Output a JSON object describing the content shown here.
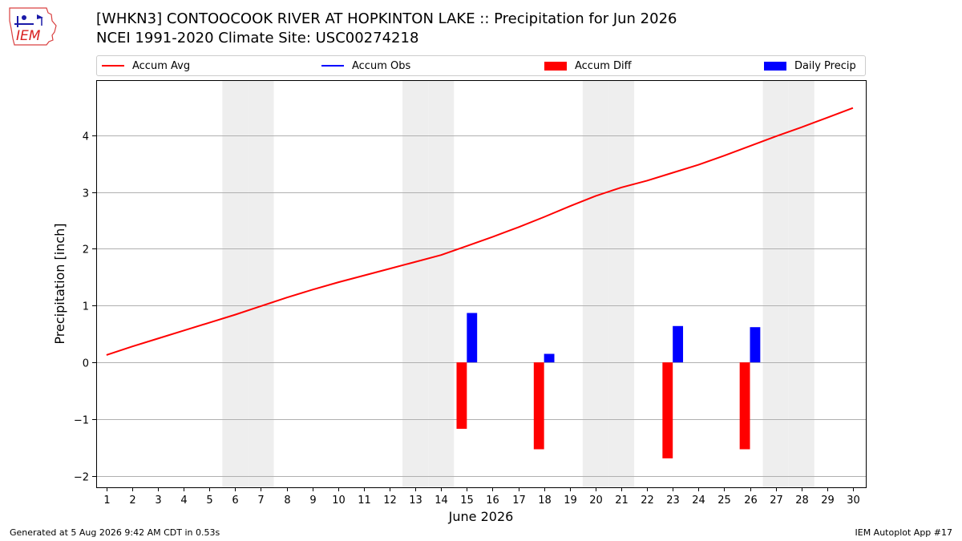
{
  "header": {
    "title_line1": "[WHKN3] CONTOOCOOK RIVER AT HOPKINTON LAKE :: Precipitation for Jun 2026",
    "title_line2": "NCEI 1991-2020 Climate Site: USC00274218",
    "logo_text": "IEM"
  },
  "footer": {
    "generated": "Generated at 5 Aug 2026 9:42 AM CDT in 0.53s",
    "app": "IEM Autoplot App #17"
  },
  "legend": [
    {
      "label": "Accum Avg",
      "kind": "line",
      "color": "#ff0000"
    },
    {
      "label": "Accum Obs",
      "kind": "line",
      "color": "#0000ff"
    },
    {
      "label": "Accum Diff",
      "kind": "patch",
      "color": "#ff0000"
    },
    {
      "label": "Daily Precip",
      "kind": "patch",
      "color": "#0000ff"
    }
  ],
  "chart_data": {
    "type": "bar",
    "xlabel": "June 2026",
    "ylabel": "Precipitation [inch]",
    "xlim": [
      0.6,
      30.5
    ],
    "ylim": [
      -2.2,
      4.97
    ],
    "yticks": [
      -2,
      -1,
      0,
      1,
      2,
      3,
      4
    ],
    "days": [
      1,
      2,
      3,
      4,
      5,
      6,
      7,
      8,
      9,
      10,
      11,
      12,
      13,
      14,
      15,
      16,
      17,
      18,
      19,
      20,
      21,
      22,
      23,
      24,
      25,
      26,
      27,
      28,
      29,
      30
    ],
    "weekend_days": [
      6,
      7,
      13,
      14,
      20,
      21,
      27,
      28
    ],
    "grid": "y",
    "legend_position": "top",
    "series": [
      {
        "name": "Accum Avg",
        "type": "line",
        "color": "#ff0000",
        "values": [
          0.13,
          0.28,
          0.42,
          0.56,
          0.7,
          0.84,
          0.99,
          1.14,
          1.28,
          1.41,
          1.53,
          1.65,
          1.77,
          1.89,
          2.05,
          2.21,
          2.38,
          2.56,
          2.75,
          2.93,
          3.08,
          3.2,
          3.34,
          3.48,
          3.64,
          3.81,
          3.98,
          4.14,
          4.31,
          4.48
        ]
      },
      {
        "name": "Daily Precip",
        "type": "bar",
        "color": "#0000ff",
        "points": [
          {
            "x": 15,
            "y": 0.87
          },
          {
            "x": 18,
            "y": 0.15
          },
          {
            "x": 23,
            "y": 0.64
          },
          {
            "x": 26,
            "y": 0.62
          }
        ]
      },
      {
        "name": "Accum Diff",
        "type": "bar",
        "color": "#ff0000",
        "points": [
          {
            "x": 15,
            "y": -1.17
          },
          {
            "x": 18,
            "y": -1.53
          },
          {
            "x": 23,
            "y": -1.69
          },
          {
            "x": 26,
            "y": -1.53
          }
        ]
      }
    ]
  }
}
